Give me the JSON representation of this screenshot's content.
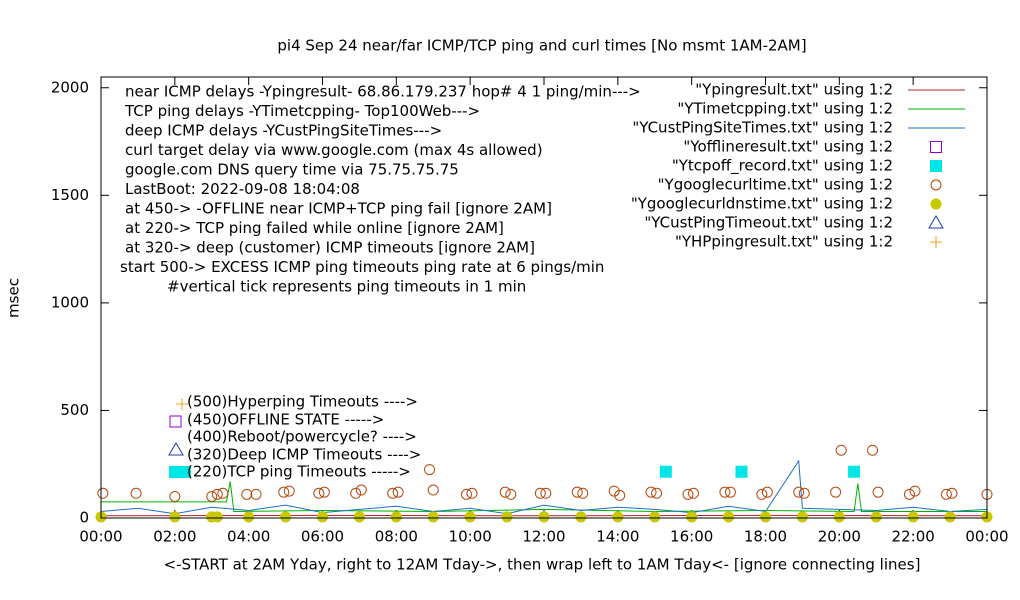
{
  "chart_data": {
    "type": "mixed",
    "title": "pi4 Sep 24  near/far ICMP/TCP ping and curl times [No msmt 1AM-2AM]",
    "y_label": "msec",
    "x_label": "<-START at 2AM Yday, right to 12AM Tday->, then wrap left to 1AM Tday<- [ignore connecting lines]",
    "xlim": [
      0,
      24
    ],
    "xticks": [
      {
        "value": 0,
        "label": "00:00"
      },
      {
        "value": 2,
        "label": "02:00"
      },
      {
        "value": 4,
        "label": "04:00"
      },
      {
        "value": 6,
        "label": "06:00"
      },
      {
        "value": 8,
        "label": "08:00"
      },
      {
        "value": 10,
        "label": "10:00"
      },
      {
        "value": 12,
        "label": "12:00"
      },
      {
        "value": 14,
        "label": "14:00"
      },
      {
        "value": 16,
        "label": "16:00"
      },
      {
        "value": 18,
        "label": "18:00"
      },
      {
        "value": 20,
        "label": "20:00"
      },
      {
        "value": 22,
        "label": "22:00"
      },
      {
        "value": 24,
        "label": "00:00"
      }
    ],
    "ylim": [
      0,
      2050
    ],
    "yticks": [
      0,
      500,
      1000,
      1500,
      2000
    ],
    "legend_position": "top-right",
    "notes": [
      "near ICMP delays -Ypingresult- 68.86.179.237 hop# 4 1 ping/min--->",
      "TCP ping delays -YTimetcpping- Top100Web--->",
      "deep ICMP delays -YCustPingSiteTimes--->",
      "curl target delay via www.google.com (max 4s allowed)",
      "google.com DNS query time via 75.75.75.75",
      "LastBoot: 2022-09-08 18:04:08",
      "at 450-> -OFFLINE near ICMP+TCP ping fail [ignore 2AM]",
      "at 220-> TCP ping failed while online [ignore 2AM]",
      "at 320-> deep (customer) ICMP timeouts [ignore 2AM]",
      "start 500-> EXCESS ICMP ping timeouts ping rate at 6 pings/min",
      "#vertical tick represents ping timeouts in 1 min"
    ],
    "key_notes": [
      "(500)Hyperping Timeouts ---->",
      "(450)OFFLINE STATE ----->",
      "(400)Reboot/powercycle? ---->",
      "(320)Deep ICMP Timeouts ---->",
      "(220)TCP ping Timeouts ----->"
    ],
    "series": [
      {
        "name": "\"Ypingresult.txt\" using 1:2",
        "color": "#b22222",
        "marker": "line",
        "x": [
          0,
          6,
          12,
          18,
          24
        ],
        "values": [
          10,
          12,
          10,
          12,
          10
        ]
      },
      {
        "name": "\"YTimetcpping.txt\" using 1:2",
        "color": "#00b000",
        "marker": "line",
        "x": [
          0,
          3.4,
          3.5,
          3.6,
          6,
          9,
          12,
          15,
          18,
          20.4,
          20.5,
          20.6,
          24
        ],
        "values": [
          75,
          75,
          170,
          30,
          35,
          30,
          40,
          30,
          35,
          30,
          160,
          30,
          30
        ]
      },
      {
        "name": "\"YCustPingSiteTimes.txt\" using 1:2",
        "color": "#1e6fc7",
        "marker": "line",
        "x": [
          0,
          1,
          2,
          3,
          4,
          5,
          6,
          7,
          8,
          9,
          10,
          11,
          12,
          13,
          14,
          15,
          16,
          17,
          18,
          18.9,
          19,
          20,
          21,
          22,
          23,
          24
        ],
        "values": [
          30,
          45,
          20,
          50,
          35,
          60,
          25,
          40,
          55,
          30,
          45,
          20,
          60,
          35,
          50,
          40,
          25,
          55,
          30,
          265,
          45,
          40,
          35,
          50,
          30,
          40
        ]
      },
      {
        "name": "\"Yofflineresult.txt\" using 1:2",
        "color": "#9400d3",
        "marker": "open-square",
        "x": [],
        "values": []
      },
      {
        "name": "\"Ytcpoff_record.txt\" using 1:2",
        "color": "#00e5e5",
        "marker": "filled-square",
        "x": [
          15.3,
          17.35,
          20.4
        ],
        "values": [
          215,
          215,
          215
        ]
      },
      {
        "name": "\"Ygooglecurltime.txt\" using 1:2",
        "color": "#b8470b",
        "marker": "open-circle",
        "x": [
          0.05,
          0.95,
          2.0,
          3.0,
          3.15,
          3.3,
          3.95,
          4.2,
          4.95,
          5.1,
          5.9,
          6.05,
          6.9,
          7.05,
          7.9,
          8.05,
          8.9,
          9.0,
          9.9,
          10.05,
          10.95,
          11.1,
          11.9,
          12.05,
          12.9,
          13.05,
          13.9,
          14.05,
          14.9,
          15.05,
          15.9,
          16.05,
          16.9,
          17.05,
          17.9,
          18.05,
          18.9,
          19.05,
          19.9,
          20.05,
          20.9,
          21.05,
          21.9,
          22.05,
          22.9,
          23.05,
          24.0
        ],
        "values": [
          115,
          115,
          100,
          100,
          110,
          115,
          110,
          110,
          120,
          125,
          115,
          120,
          115,
          130,
          115,
          120,
          225,
          130,
          110,
          115,
          120,
          110,
          115,
          115,
          120,
          115,
          125,
          105,
          120,
          115,
          110,
          115,
          120,
          120,
          110,
          120,
          120,
          115,
          120,
          315,
          315,
          120,
          110,
          125,
          110,
          115,
          110
        ]
      },
      {
        "name": "\"Ygooglecurldnstime.txt\" using 1:2",
        "color": "#c8c800",
        "marker": "filled-circle",
        "x": [
          0,
          2,
          3,
          3.15,
          4,
          5,
          6,
          7,
          8,
          9,
          10,
          11,
          12,
          13,
          14,
          15,
          16,
          17,
          18,
          19,
          20,
          21,
          22,
          23,
          24
        ],
        "values": [
          5,
          5,
          5,
          5,
          5,
          5,
          5,
          5,
          5,
          5,
          5,
          5,
          5,
          5,
          5,
          5,
          5,
          5,
          5,
          5,
          5,
          5,
          5,
          5,
          5
        ]
      },
      {
        "name": "\"YCustPingTimeout.txt\" using 1:2",
        "color": "#1f3f9f",
        "marker": "open-triangle",
        "x": [],
        "values": []
      },
      {
        "name": "\"YHPpingresult.txt\" using 1:2",
        "color": "#f0a020",
        "marker": "plus",
        "x": [],
        "values": []
      }
    ]
  }
}
